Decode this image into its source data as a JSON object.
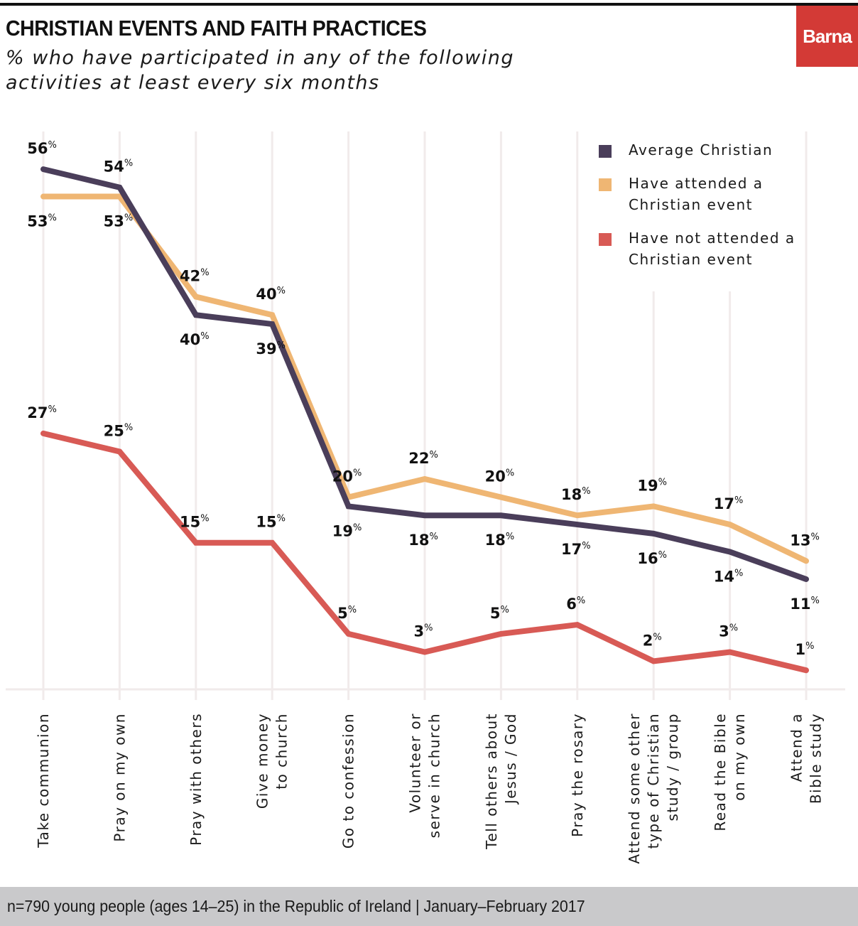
{
  "header": {
    "title": "CHRISTIAN EVENTS AND FAITH PRACTICES",
    "subtitle": "% who have participated in any of the following activities at least every six months",
    "logo": "Barna"
  },
  "footer": {
    "note": "n=790 young people (ages 14–25) in the Republic of Ireland  |  January–February 2017"
  },
  "chart_data": {
    "type": "line",
    "title": "CHRISTIAN EVENTS AND FAITH PRACTICES",
    "subtitle": "% who have participated in any of the following activities at least every six months",
    "xlabel": "",
    "ylabel": "",
    "ylim": [
      0,
      60
    ],
    "grid": "vertical",
    "legend_position": "top-right",
    "value_suffix": "%",
    "categories": [
      "Take communion",
      "Pray on my own",
      "Pray with others",
      "Give money to church",
      "Go to confession",
      "Volunteer or serve in church",
      "Tell others about Jesus / God",
      "Pray the rosary",
      "Attend some other type of Christian study / group",
      "Read the Bible on my own",
      "Attend a Bible study"
    ],
    "category_lines": [
      [
        "Take communion"
      ],
      [
        "Pray on my own"
      ],
      [
        "Pray with others"
      ],
      [
        "Give money",
        "to church"
      ],
      [
        "Go to confession"
      ],
      [
        "Volunteer or",
        "serve in church"
      ],
      [
        "Tell others about",
        "Jesus / God"
      ],
      [
        "Pray the rosary"
      ],
      [
        "Attend some other",
        "type of Christian",
        "study / group"
      ],
      [
        "Read the Bible",
        "on my own"
      ],
      [
        "Attend a",
        "Bible study"
      ]
    ],
    "series": [
      {
        "name": "Average Christian",
        "color": "#4a3e5a",
        "values": [
          56,
          54,
          40,
          39,
          19,
          18,
          18,
          17,
          16,
          14,
          11
        ],
        "label_pos": [
          "above",
          "above",
          "below",
          "below",
          "below",
          "below",
          "below",
          "below",
          "below",
          "below",
          "below"
        ]
      },
      {
        "name": "Have attended a Christian event",
        "color": "#efb673",
        "values": [
          53,
          53,
          42,
          40,
          20,
          22,
          20,
          18,
          19,
          17,
          13
        ],
        "label_pos": [
          "below",
          "below",
          "above",
          "above",
          "above",
          "above",
          "above",
          "above",
          "above",
          "above",
          "above"
        ]
      },
      {
        "name": "Have not attended a Christian event",
        "color": "#d85a55",
        "values": [
          27,
          25,
          15,
          15,
          5,
          3,
          5,
          6,
          2,
          3,
          1
        ],
        "label_pos": [
          "above",
          "above",
          "above",
          "above",
          "above",
          "above",
          "above",
          "above",
          "above",
          "above",
          "above"
        ]
      }
    ]
  },
  "legend": {
    "items": [
      {
        "label": "Average Christian",
        "color": "#4a3e5a"
      },
      {
        "label": "Have attended a Christian event",
        "color": "#efb673"
      },
      {
        "label": "Have not attended a Christian event",
        "color": "#d85a55"
      }
    ]
  },
  "colors": {
    "brand": "#d33a36",
    "gridline": "#f1ebeb",
    "footer_bg": "#c9c9cb"
  }
}
